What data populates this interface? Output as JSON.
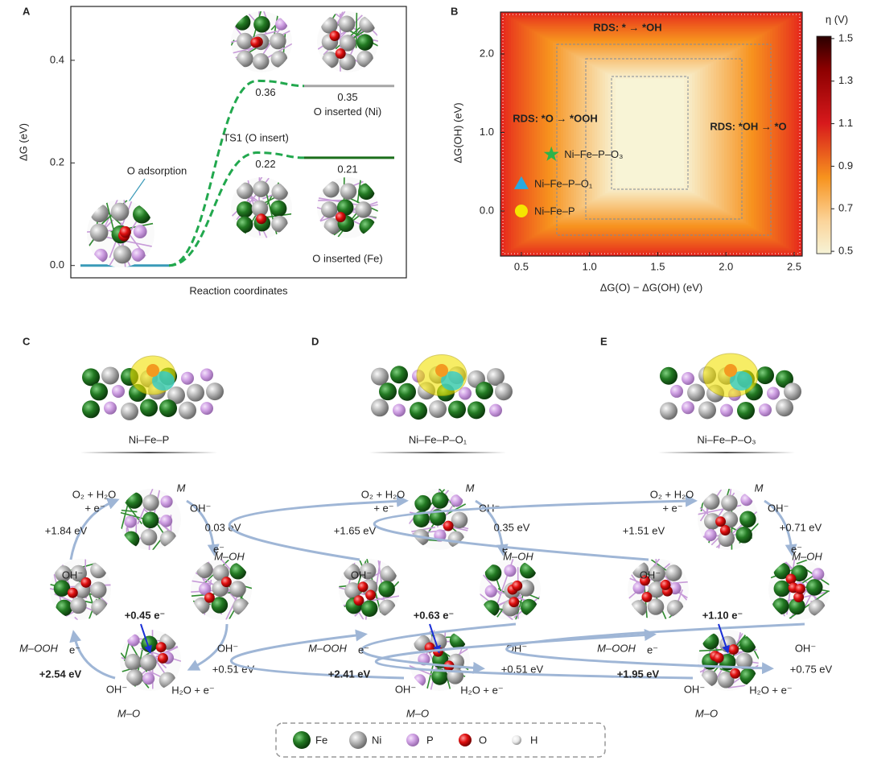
{
  "chart_data": [
    {
      "type": "energy-profile",
      "panel": "A",
      "ylabel": "ΔG (eV)",
      "xlabel": "Reaction coordinates",
      "categories": [
        "O adsorption",
        "TS1 (O insert)",
        null
      ],
      "start_color": "#3a9ab8",
      "path_color": "#22a84e",
      "ylim": [
        -0.024,
        0.505
      ],
      "yticks": [
        {
          "value": 0,
          "label": "0.0"
        },
        0.2,
        0.4
      ],
      "series": [
        {
          "name": "O inserted (Ni)",
          "color": "#a6a6a6",
          "values": [
            0,
            0.36,
            0.35
          ]
        },
        {
          "name": "O inserted (Fe)",
          "color": "#1b6e1b",
          "values": [
            0,
            0.22,
            0.21
          ]
        }
      ]
    },
    {
      "type": "scatter",
      "panel": "B",
      "xlabel": "ΔG(O) − ΔG(OH) (eV)",
      "ylabel": "ΔG(OH) (eV)",
      "xlim": [
        0.347,
        2.559
      ],
      "ylim": [
        -0.574,
        2.533
      ],
      "xticks": [
        0.5,
        {
          "value": 1,
          "label": "1.0"
        },
        1.5,
        {
          "value": 2,
          "label": "2.0"
        },
        2.5
      ],
      "yticks": [
        {
          "value": 0,
          "label": "0.0"
        },
        {
          "value": 1,
          "label": "1.0"
        },
        {
          "value": 2,
          "label": "2.0"
        }
      ],
      "annotations": [
        "RDS: * → *OH",
        "RDS: *O → *OOH",
        "RDS: *OH → *O"
      ],
      "colorbar": {
        "label": "η (V)",
        "lim": [
          0.489,
          1.511
        ],
        "ticks": [
          0.5,
          0.7,
          0.9,
          1.1,
          1.3,
          1.5
        ]
      },
      "series": [
        {
          "name": "Ni–Fe–P–O₃",
          "color": "#2db34a",
          "marker": "star",
          "x": [
            0.72
          ],
          "values": [
            0.72
          ]
        },
        {
          "name": "Ni–Fe–P–O₁",
          "color": "#29a9e0",
          "marker": "triangle",
          "x": [
            0.5
          ],
          "values": [
            0.35
          ]
        },
        {
          "name": "Ni–Fe–P",
          "color": "#f5e600",
          "marker": "circle",
          "x": [
            0.5
          ],
          "values": [
            0.0
          ]
        }
      ]
    }
  ],
  "panels": [
    {
      "label": "C",
      "name": "Ni–Fe–P",
      "states": [
        "M",
        "M–OH",
        "M–O",
        "M–OOH"
      ],
      "steps": [
        "0.03 eV",
        "+0.51 eV",
        "+2.54 eV",
        "+1.84 eV"
      ],
      "charge": "+0.45 e⁻",
      "reagents": [
        "O₂ + H₂O",
        "+ e⁻",
        "OH⁻",
        "e⁻",
        "OH⁻",
        "e⁻",
        "OH⁻",
        "OH⁻",
        "H₂O + e⁻"
      ]
    },
    {
      "label": "D",
      "name": "Ni–Fe–P–O₁",
      "states": [
        "M",
        "M–OH",
        "M–O",
        "M–OOH"
      ],
      "steps": [
        "0.35 eV",
        "+0.51 eV",
        "+2.41 eV",
        "+1.65 eV"
      ],
      "charge": "+0.63 e⁻",
      "reagents": [
        "O₂ + H₂O",
        "+ e⁻",
        "OH⁻",
        "e⁻",
        "OH⁻",
        "e⁻",
        "OH⁻",
        "OH⁻",
        "H₂O + e⁻"
      ]
    },
    {
      "label": "E",
      "name": "Ni–Fe–P–O₃",
      "states": [
        "M",
        "M–OH",
        "M–O",
        "M–OOH"
      ],
      "steps": [
        "+0.71 eV",
        "+0.75 eV",
        "+1.95 eV",
        "+1.51 eV"
      ],
      "charge": "+1.10 e⁻",
      "reagents": [
        "O₂ + H₂O",
        "+ e⁻",
        "OH⁻",
        "e⁻",
        "OH⁻",
        "e⁻",
        "OH⁻",
        "OH⁻",
        "H₂O + e⁻"
      ]
    }
  ],
  "atom_legend": [
    "Fe",
    "Ni",
    "P",
    "O",
    "H"
  ]
}
